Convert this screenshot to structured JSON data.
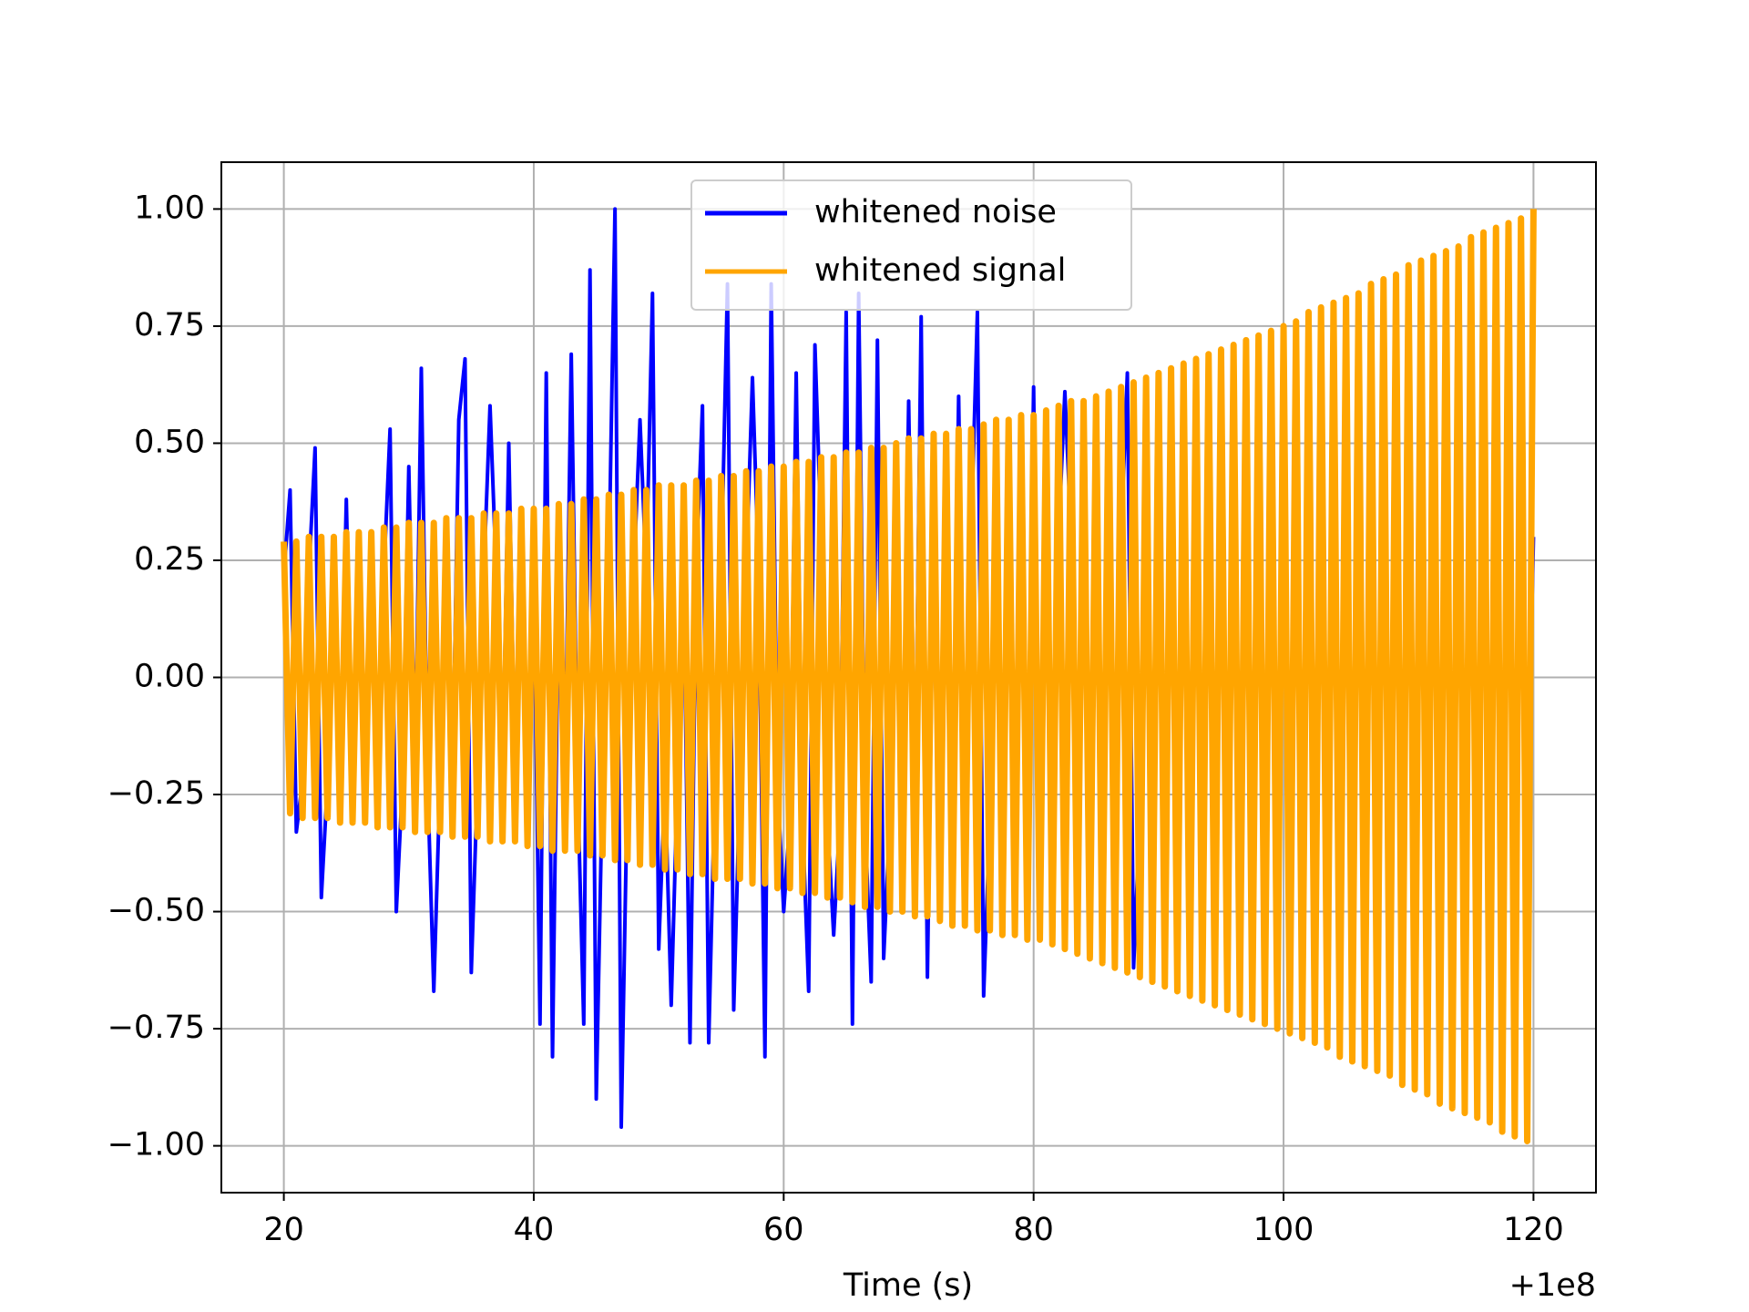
{
  "chart_data": {
    "type": "line",
    "xlabel": "Time (s)",
    "x_offset_label": "+1e8",
    "xlim": [
      15,
      125
    ],
    "xticks": [
      20,
      40,
      60,
      80,
      100,
      120
    ],
    "ylim": [
      -1.1,
      1.1
    ],
    "yticks": [
      {
        "value": -1,
        "label": "−1.00"
      },
      {
        "value": -0.75,
        "label": "−0.75"
      },
      {
        "value": -0.5,
        "label": "−0.50"
      },
      {
        "value": -0.25,
        "label": "−0.25"
      },
      {
        "value": 0,
        "label": "0.00"
      },
      {
        "value": 0.25,
        "label": "0.25"
      },
      {
        "value": 0.5,
        "label": "0.50"
      },
      {
        "value": 0.75,
        "label": "0.75"
      },
      {
        "value": 1,
        "label": "1.00"
      }
    ],
    "grid": true,
    "legend_loc": "upper center",
    "x": [
      20,
      20.5,
      21,
      21.5,
      22,
      22.5,
      23,
      23.5,
      24,
      24.5,
      25,
      25.5,
      26,
      26.5,
      27,
      27.5,
      28,
      28.5,
      29,
      29.5,
      30,
      30.5,
      31,
      31.5,
      32,
      32.5,
      33,
      33.5,
      34,
      34.5,
      35,
      35.5,
      36,
      36.5,
      37,
      37.5,
      38,
      38.5,
      39,
      39.5,
      40,
      40.5,
      41,
      41.5,
      42,
      42.5,
      43,
      43.5,
      44,
      44.5,
      45,
      45.5,
      46,
      46.5,
      47,
      47.5,
      48,
      48.5,
      49,
      49.5,
      50,
      50.5,
      51,
      51.5,
      52,
      52.5,
      53,
      53.5,
      54,
      54.5,
      55,
      55.5,
      56,
      56.5,
      57,
      57.5,
      58,
      58.5,
      59,
      59.5,
      60,
      60.5,
      61,
      61.5,
      62,
      62.5,
      63,
      63.5,
      64,
      64.5,
      65,
      65.5,
      66,
      66.5,
      67,
      67.5,
      68,
      68.5,
      69,
      69.5,
      70,
      70.5,
      71,
      71.5,
      72,
      72.5,
      73,
      73.5,
      74,
      74.5,
      75,
      75.5,
      76,
      76.5,
      77,
      77.5,
      78,
      78.5,
      79,
      79.5,
      80,
      80.5,
      81,
      81.5,
      82,
      82.5,
      83,
      83.5,
      84,
      84.5,
      85,
      85.5,
      86,
      86.5,
      87,
      87.5,
      88,
      88.5,
      89,
      89.5,
      90,
      90.5,
      91,
      91.5,
      92,
      92.5,
      93,
      93.5,
      94,
      94.5,
      95,
      95.5,
      96,
      96.5,
      97,
      97.5,
      98,
      98.5,
      99,
      99.5,
      100,
      100.5,
      101,
      101.5,
      102,
      102.5,
      103,
      103.5,
      104,
      104.5,
      105,
      105.5,
      106,
      106.5,
      107,
      107.5,
      108,
      108.5,
      109,
      109.5,
      110,
      110.5,
      111,
      111.5,
      112,
      112.5,
      113,
      113.5,
      114,
      114.5,
      115,
      115.5,
      116,
      116.5,
      117,
      117.5,
      118,
      118.5,
      119,
      119.5,
      120
    ],
    "series": [
      {
        "name": "whitened noise",
        "color": "#0000ff",
        "width": 4,
        "values": [
          0.22,
          0.4,
          -0.33,
          -0.22,
          0.22,
          0.49,
          -0.47,
          -0.22,
          0.22,
          -0.22,
          0.38,
          -0.22,
          0.22,
          -0.22,
          0.22,
          -0.22,
          0.22,
          0.53,
          -0.5,
          -0.22,
          0.45,
          -0.22,
          0.66,
          -0.22,
          -0.67,
          -0.22,
          0.22,
          -0.22,
          0.55,
          0.68,
          -0.63,
          -0.22,
          0.22,
          0.58,
          0.22,
          -0.22,
          0.5,
          -0.22,
          0.22,
          -0.22,
          0.22,
          -0.74,
          0.65,
          -0.81,
          0.22,
          -0.22,
          0.69,
          -0.22,
          -0.74,
          0.87,
          -0.9,
          -0.22,
          0.22,
          1.0,
          -0.96,
          -0.22,
          0.22,
          0.55,
          0.22,
          0.82,
          -0.58,
          -0.22,
          -0.7,
          -0.22,
          0.22,
          -0.78,
          0.22,
          0.58,
          -0.78,
          -0.22,
          0.22,
          0.84,
          -0.71,
          -0.22,
          0.22,
          0.64,
          0.22,
          -0.81,
          0.84,
          -0.22,
          -0.5,
          -0.3,
          0.65,
          -0.3,
          -0.67,
          0.71,
          0.3,
          -0.3,
          -0.55,
          -0.3,
          0.78,
          -0.74,
          0.82,
          -0.3,
          -0.65,
          0.72,
          -0.6,
          -0.3,
          0.3,
          -0.3,
          0.59,
          -0.3,
          0.77,
          -0.64,
          0.3,
          -0.3,
          0.3,
          -0.3,
          0.6,
          -0.3,
          0.3,
          0.78,
          -0.68,
          -0.3,
          0.3,
          -0.3,
          0.3,
          -0.3,
          0.3,
          -0.3,
          0.62,
          -0.56,
          0.3,
          -0.3,
          0.3,
          0.61,
          0.3,
          -0.3,
          0.3,
          -0.6,
          0.55,
          -0.3,
          0.3,
          -0.3,
          0.3,
          0.65,
          -0.62,
          -0.3,
          0.3,
          -0.3,
          0.3,
          -0.3,
          0.3,
          -0.3,
          0.3,
          -0.3,
          0.3,
          -0.3,
          0.3,
          -0.3,
          0.3,
          -0.3,
          0.3,
          -0.3,
          0.3,
          -0.3,
          0.3,
          -0.3,
          0.3,
          -0.3,
          0.3,
          -0.3,
          0.3,
          -0.3,
          0.3,
          -0.3,
          0.3,
          -0.3,
          0.3,
          -0.3,
          0.3,
          -0.3,
          0.3,
          -0.3,
          0.3,
          -0.3,
          0.3,
          -0.3,
          0.3,
          -0.3,
          0.3,
          -0.3,
          0.3,
          -0.3,
          0.3,
          -0.3,
          0.3,
          -0.3,
          0.3,
          -0.3,
          0.3,
          -0.3,
          0.3,
          -0.3,
          0.3,
          -0.3,
          0.3,
          -0.3,
          0.3,
          -0.3,
          0.3
        ]
      },
      {
        "name": "whitened signal",
        "color": "#ffa500",
        "width": 7,
        "values": [
          0.29,
          -0.29,
          0.29,
          -0.3,
          0.3,
          -0.3,
          0.3,
          -0.3,
          0.3,
          -0.31,
          0.31,
          -0.31,
          0.31,
          -0.31,
          0.31,
          -0.32,
          0.32,
          -0.32,
          0.32,
          -0.32,
          0.33,
          -0.33,
          0.33,
          -0.33,
          0.33,
          -0.33,
          0.34,
          -0.34,
          0.34,
          -0.34,
          0.34,
          -0.34,
          0.35,
          -0.35,
          0.35,
          -0.35,
          0.35,
          -0.35,
          0.36,
          -0.36,
          0.36,
          -0.36,
          0.36,
          -0.37,
          0.37,
          -0.37,
          0.37,
          -0.37,
          0.38,
          -0.38,
          0.38,
          -0.38,
          0.39,
          -0.39,
          0.39,
          -0.39,
          0.4,
          -0.4,
          0.4,
          -0.4,
          0.41,
          -0.41,
          0.41,
          -0.41,
          0.41,
          -0.42,
          0.42,
          -0.42,
          0.42,
          -0.43,
          0.43,
          -0.43,
          0.43,
          -0.43,
          0.44,
          -0.44,
          0.44,
          -0.44,
          0.45,
          -0.45,
          0.45,
          -0.45,
          0.46,
          -0.46,
          0.46,
          -0.46,
          0.47,
          -0.47,
          0.47,
          -0.47,
          0.48,
          -0.48,
          0.48,
          -0.49,
          0.49,
          -0.49,
          0.49,
          -0.5,
          0.5,
          -0.5,
          0.51,
          -0.51,
          0.51,
          -0.51,
          0.52,
          -0.52,
          0.52,
          -0.53,
          0.53,
          -0.53,
          0.53,
          -0.54,
          0.54,
          -0.54,
          0.55,
          -0.55,
          0.55,
          -0.55,
          0.56,
          -0.56,
          0.56,
          -0.56,
          0.57,
          -0.57,
          0.58,
          -0.58,
          0.59,
          -0.59,
          0.59,
          -0.6,
          0.6,
          -0.61,
          0.61,
          -0.62,
          0.62,
          -0.63,
          0.63,
          -0.64,
          0.64,
          -0.65,
          0.65,
          -0.66,
          0.66,
          -0.67,
          0.67,
          -0.68,
          0.68,
          -0.69,
          0.69,
          -0.7,
          0.7,
          -0.71,
          0.71,
          -0.72,
          0.72,
          -0.73,
          0.73,
          -0.74,
          0.74,
          -0.75,
          0.75,
          -0.76,
          0.76,
          -0.77,
          0.78,
          -0.78,
          0.79,
          -0.79,
          0.8,
          -0.81,
          0.81,
          -0.82,
          0.82,
          -0.83,
          0.84,
          -0.84,
          0.85,
          -0.85,
          0.86,
          -0.87,
          0.88,
          -0.88,
          0.89,
          -0.89,
          0.9,
          -0.91,
          0.91,
          -0.92,
          0.92,
          -0.93,
          0.94,
          -0.94,
          0.95,
          -0.95,
          0.96,
          -0.97,
          0.97,
          -0.98,
          0.98,
          -0.99,
          1.0
        ]
      }
    ]
  }
}
